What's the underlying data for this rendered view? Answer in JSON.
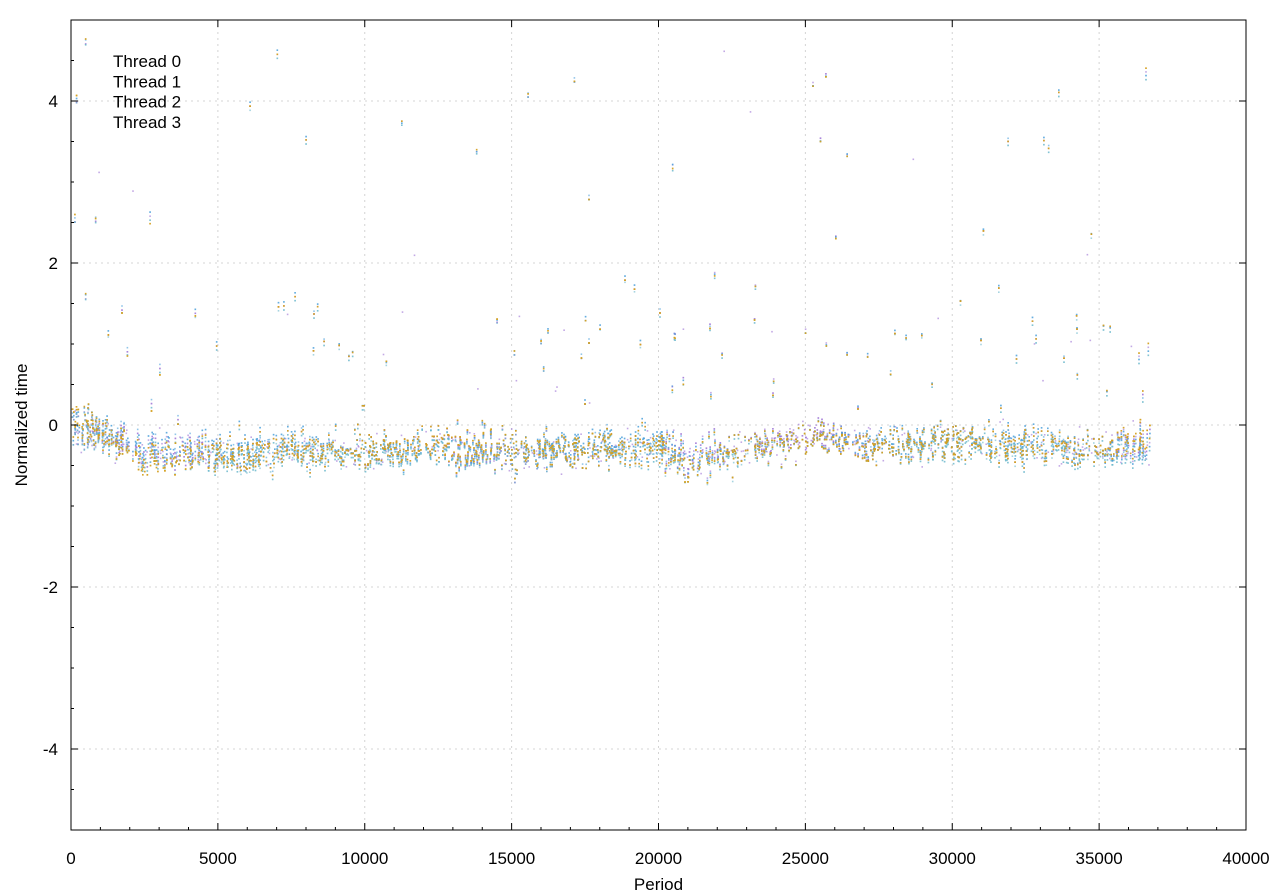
{
  "chart_data": {
    "type": "scatter",
    "title": "",
    "xlabel": "Period",
    "ylabel": "Normalized time",
    "xlim": [
      0,
      40000
    ],
    "ylim": [
      -5,
      5
    ],
    "xticks": [
      0,
      5000,
      10000,
      15000,
      20000,
      25000,
      30000,
      35000,
      40000
    ],
    "yticks": [
      -4,
      -2,
      0,
      2,
      4
    ],
    "xtick_labels": [
      "0",
      "5000",
      "10000",
      "15000",
      "20000",
      "25000",
      "30000",
      "35000",
      "40000"
    ],
    "ytick_labels": [
      "-4",
      "-2",
      "0",
      "2",
      "4"
    ],
    "grid": true,
    "legend_position": "top-left",
    "data_x_range": [
      0,
      36700
    ],
    "series": [
      {
        "name": "Thread 0",
        "color": "#9b6fd4",
        "approx_points": [
          [
            0,
            0.0
          ],
          [
            2500,
            -0.3
          ],
          [
            5000,
            -0.35
          ],
          [
            7500,
            -0.3
          ],
          [
            10000,
            -0.3
          ],
          [
            12500,
            -0.25
          ],
          [
            15000,
            -0.35
          ],
          [
            17500,
            -0.3
          ],
          [
            20000,
            -0.25
          ],
          [
            21000,
            -0.4
          ],
          [
            22500,
            -0.3
          ],
          [
            25000,
            -0.1
          ],
          [
            27500,
            -0.25
          ],
          [
            30000,
            -0.2
          ],
          [
            32500,
            -0.25
          ],
          [
            35000,
            -0.3
          ],
          [
            36700,
            -0.2
          ]
        ]
      },
      {
        "name": "Thread 1",
        "color": "#4a9edb",
        "approx_points": [
          [
            0,
            0.05
          ],
          [
            2500,
            -0.25
          ],
          [
            5000,
            -0.3
          ],
          [
            7500,
            -0.25
          ],
          [
            10000,
            -0.3
          ],
          [
            12500,
            -0.3
          ],
          [
            15000,
            -0.3
          ],
          [
            17500,
            -0.25
          ],
          [
            20000,
            -0.2
          ],
          [
            21000,
            -0.45
          ],
          [
            22500,
            -0.3
          ],
          [
            25000,
            -0.15
          ],
          [
            27500,
            -0.2
          ],
          [
            30000,
            -0.2
          ],
          [
            32500,
            -0.2
          ],
          [
            35000,
            -0.3
          ],
          [
            36700,
            -0.25
          ]
        ]
      },
      {
        "name": "Thread 2",
        "color": "#6ab8cc",
        "approx_points": [
          [
            0,
            0.0
          ],
          [
            2500,
            -0.35
          ],
          [
            5000,
            -0.4
          ],
          [
            7500,
            -0.35
          ],
          [
            10000,
            -0.35
          ],
          [
            12500,
            -0.3
          ],
          [
            15000,
            -0.35
          ],
          [
            17500,
            -0.3
          ],
          [
            20000,
            -0.3
          ],
          [
            21000,
            -0.5
          ],
          [
            22500,
            -0.35
          ],
          [
            25000,
            -0.15
          ],
          [
            27500,
            -0.25
          ],
          [
            30000,
            -0.25
          ],
          [
            32500,
            -0.3
          ],
          [
            35000,
            -0.35
          ],
          [
            36700,
            -0.3
          ]
        ]
      },
      {
        "name": "Thread 3",
        "color": "#d4a020",
        "approx_points": [
          [
            0,
            0.1
          ],
          [
            2500,
            -0.4
          ],
          [
            5000,
            -0.35
          ],
          [
            7500,
            -0.3
          ],
          [
            10000,
            -0.3
          ],
          [
            12500,
            -0.25
          ],
          [
            15000,
            -0.3
          ],
          [
            17500,
            -0.3
          ],
          [
            20000,
            -0.25
          ],
          [
            21000,
            -0.5
          ],
          [
            22500,
            -0.3
          ],
          [
            25000,
            -0.15
          ],
          [
            27500,
            -0.25
          ],
          [
            30000,
            -0.2
          ],
          [
            32500,
            -0.25
          ],
          [
            35000,
            -0.3
          ],
          [
            36700,
            -0.15
          ]
        ]
      }
    ]
  }
}
